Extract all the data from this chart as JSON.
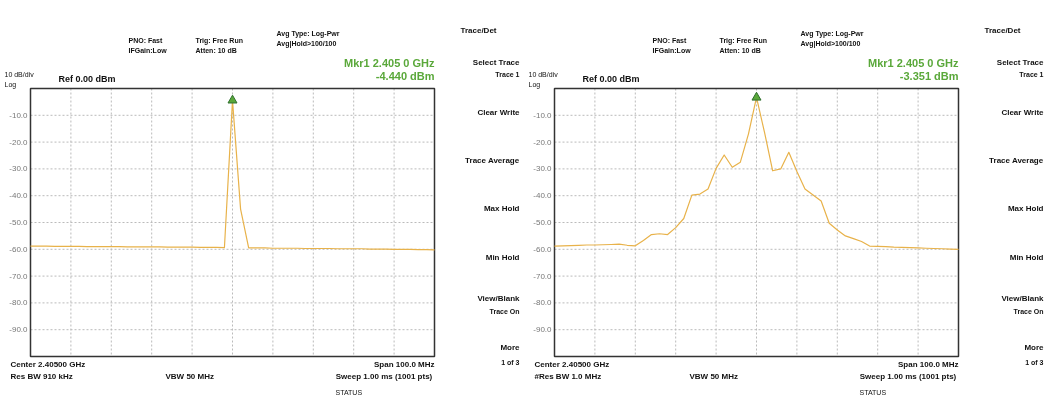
{
  "chart_data": [
    {
      "type": "line",
      "categories": [
        null,
        null,
        null,
        null,
        null,
        null,
        null,
        null,
        null,
        null,
        null,
        null,
        null,
        null,
        null,
        null,
        null,
        null,
        null,
        null,
        null,
        null,
        null,
        null,
        null,
        null,
        null,
        null,
        null,
        null,
        null,
        null,
        null,
        null,
        null,
        null,
        null,
        null,
        null,
        null,
        null,
        null,
        null,
        null,
        null,
        null,
        null,
        null,
        null,
        null,
        null
      ],
      "ylim": [
        -100,
        0
      ],
      "yticks": [
        {
          "value": -10,
          "label": "-10.0"
        },
        {
          "value": -20,
          "label": "-20.0"
        },
        {
          "value": -30,
          "label": "-30.0"
        },
        {
          "value": -40,
          "label": "-40.0"
        },
        {
          "value": -50,
          "label": "-50.0"
        },
        {
          "value": -60,
          "label": "-60.0"
        },
        {
          "value": -70,
          "label": "-70.0"
        },
        {
          "value": -80,
          "label": "-80.0"
        },
        {
          "value": -90,
          "label": "-90.0"
        }
      ],
      "tick_labels": "y",
      "grid": true,
      "series": [
        {
          "color": "#e8b24a",
          "values": [
            -58.8,
            -58.8,
            -58.8,
            -58.9,
            -58.9,
            -58.9,
            -58.9,
            -59.0,
            -59.0,
            -59.0,
            -59.0,
            -59.0,
            -59.1,
            -59.1,
            -59.1,
            -59.1,
            -59.1,
            -59.2,
            -59.2,
            -59.2,
            -59.2,
            -59.3,
            -59.3,
            -59.3,
            -59.4,
            -4.44,
            -45,
            -59.5,
            -59.5,
            -59.5,
            -59.6,
            -59.6,
            -59.6,
            -59.6,
            -59.7,
            -59.7,
            -59.7,
            -59.7,
            -59.8,
            -59.8,
            -59.8,
            -59.8,
            -59.9,
            -59.9,
            -59.9,
            -60.0,
            -60.0,
            -60.0,
            -60.1,
            -60.1,
            -60.2
          ]
        }
      ],
      "annotations": [
        "10 dB/div",
        "Log",
        "Ref 0.00 dBm",
        "PNO: Fast",
        "IFGain:Low",
        "Trig: Free Run",
        "Atten: 10 dB",
        "Avg Type: Log-Pwr",
        "Avg|Hold>100/100",
        "Center 2.40500 GHz",
        "Res BW 910 kHz",
        "VBW 50 MHz",
        "Span 100.0 MHz",
        "Sweep  1.00 ms (1001 pts)",
        "STATUS",
        "Trace/Det",
        "Select Trace",
        "Trace 1",
        "Clear Write",
        "Trace Average",
        "Max Hold",
        "Min Hold",
        "View/Blank",
        "Trace On",
        "More",
        "1 of 3",
        "Mkr1 2.405 0 GHz",
        "-4.440 dBm"
      ]
    },
    {
      "type": "line",
      "categories": [
        null,
        null,
        null,
        null,
        null,
        null,
        null,
        null,
        null,
        null,
        null,
        null,
        null,
        null,
        null,
        null,
        null,
        null,
        null,
        null,
        null,
        null,
        null,
        null,
        null,
        null,
        null,
        null,
        null,
        null,
        null,
        null,
        null,
        null,
        null,
        null,
        null,
        null,
        null,
        null,
        null,
        null,
        null,
        null,
        null,
        null,
        null,
        null,
        null,
        null,
        null
      ],
      "ylim": [
        -100,
        0
      ],
      "yticks": [
        {
          "value": -10,
          "label": "-10.0"
        },
        {
          "value": -20,
          "label": "-20.0"
        },
        {
          "value": -30,
          "label": "-30.0"
        },
        {
          "value": -40,
          "label": "-40.0"
        },
        {
          "value": -50,
          "label": "-50.0"
        },
        {
          "value": -60,
          "label": "-60.0"
        },
        {
          "value": -70,
          "label": "-70.0"
        },
        {
          "value": -80,
          "label": "-80.0"
        },
        {
          "value": -90,
          "label": "-90.0"
        }
      ],
      "tick_labels": "y",
      "grid": true,
      "series": [
        {
          "color": "#e8b24a",
          "values": [
            -58.8,
            -58.7,
            -58.6,
            -58.5,
            -58.4,
            -58.4,
            -58.3,
            -58.2,
            -58.1,
            -58.5,
            -58.7,
            -56.7,
            -54.5,
            -54.2,
            -54.5,
            -51.9,
            -48.5,
            -39.8,
            -39.4,
            -37.5,
            -29.8,
            -24.8,
            -29.4,
            -27.5,
            -17,
            -3.351,
            -16.5,
            -30.7,
            -30,
            -23.8,
            -31,
            -37.5,
            -39.7,
            -42,
            -50.3,
            -52.8,
            -55,
            -56,
            -57.1,
            -58.8,
            -58.9,
            -59,
            -59.2,
            -59.3,
            -59.4,
            -59.5,
            -59.6,
            -59.7,
            -59.8,
            -59.9,
            -60
          ]
        }
      ],
      "annotations": [
        "10 dB/div",
        "Log",
        "Ref 0.00 dBm",
        "PNO: Fast",
        "IFGain:Low",
        "Trig: Free Run",
        "Atten: 10 dB",
        "Avg Type: Log-Pwr",
        "Avg|Hold>100/100",
        "Center 2.40500 GHz",
        "#Res BW 1.0 MHz",
        "VBW 50 MHz",
        "Span 100.0 MHz",
        "Sweep  1.00 ms (1001 pts)",
        "STATUS",
        "Trace/Det",
        "Select Trace",
        "Trace 1",
        "Clear Write",
        "Trace Average",
        "Max Hold",
        "Min Hold",
        "View/Blank",
        "Trace On",
        "More",
        "1 of 3",
        "Mkr1 2.405 0 GHz",
        "-3.351 dBm"
      ]
    }
  ]
}
